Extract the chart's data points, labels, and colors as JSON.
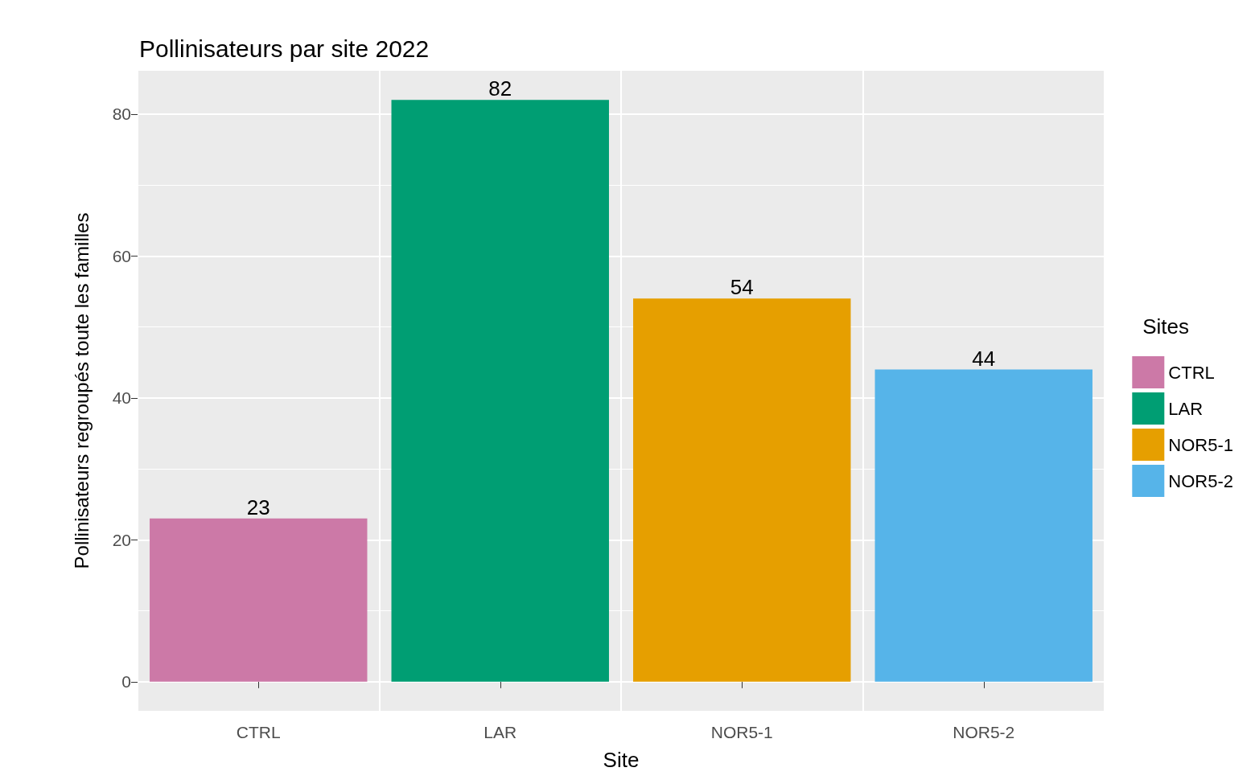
{
  "chart_data": {
    "type": "bar",
    "title": "Pollinisateurs par site 2022",
    "xlabel": "Site",
    "ylabel": "Pollinisateurs regroupés toute les familles",
    "legend_title": "Sites",
    "categories": [
      "CTRL",
      "LAR",
      "NOR5-1",
      "NOR5-2"
    ],
    "series": [
      {
        "name": "CTRL",
        "color": "#cc79a7",
        "values": [
          23,
          null,
          null,
          null
        ]
      },
      {
        "name": "LAR",
        "color": "#009e73",
        "values": [
          null,
          82,
          null,
          null
        ]
      },
      {
        "name": "NOR5-1",
        "color": "#e69f00",
        "values": [
          null,
          null,
          54,
          null
        ]
      },
      {
        "name": "NOR5-2",
        "color": "#56b4e9",
        "values": [
          null,
          null,
          null,
          44
        ]
      }
    ],
    "ylim": [
      -4.1,
      86.1
    ],
    "yticks": [
      0,
      20,
      40,
      60,
      80
    ],
    "grid": true,
    "legend": "right",
    "data_labels": true
  }
}
